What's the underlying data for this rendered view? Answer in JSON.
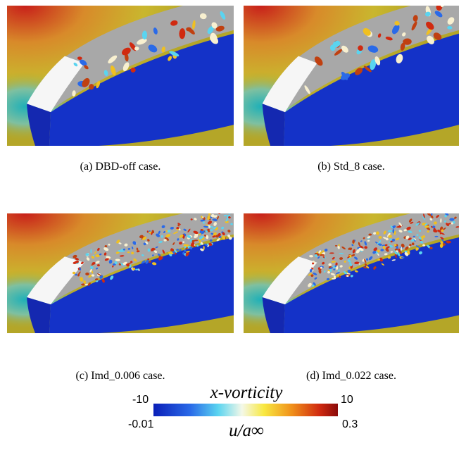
{
  "panels": [
    {
      "caption": "(a) DBD-off case."
    },
    {
      "caption": "(b) Std_8 case."
    },
    {
      "caption": "(c) Imd_0.006 case."
    },
    {
      "caption": "(d) Imd_0.022 case."
    }
  ],
  "colorbar": {
    "top_title": "x-vorticity",
    "top_min": "-10",
    "top_max": "10",
    "bottom_title": "u/a∞",
    "bottom_min": "-0.01",
    "bottom_max": "0.3"
  }
}
